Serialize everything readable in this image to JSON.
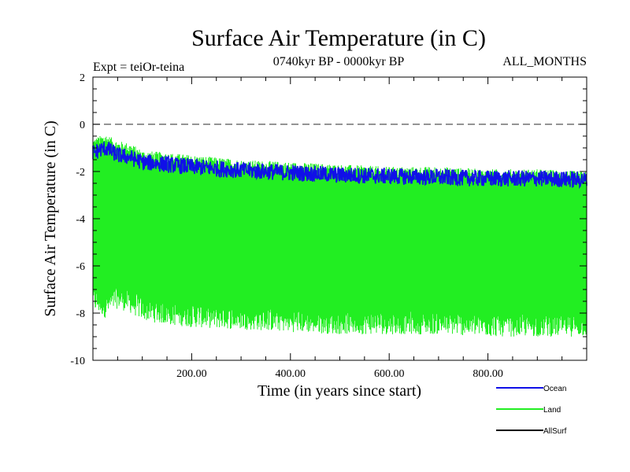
{
  "chart_data": {
    "type": "line",
    "title": "Surface Air Temperature (in C)",
    "subtitle": "0740kyr BP - 0000kyr BP",
    "left_label": "Expt = teiOr-teina",
    "right_label": "ALL_MONTHS",
    "xlabel": "Time (in years since start)",
    "ylabel": "Surface Air Temperature (in C)",
    "xlim": [
      0,
      1000
    ],
    "ylim": [
      -10,
      2
    ],
    "x_ticks": [
      200,
      400,
      600,
      800
    ],
    "x_tick_labels": [
      "200.00",
      "400.00",
      "600.00",
      "800.00"
    ],
    "y_ticks": [
      2,
      0,
      -2,
      -4,
      -6,
      -8,
      -10
    ],
    "y_tick_labels": [
      "2",
      "0",
      "-2",
      "-4",
      "-6",
      "-8",
      "-10"
    ],
    "reference_line": {
      "y": 0,
      "style": "dashed"
    },
    "series": [
      {
        "name": "Land",
        "color": "#22ee22",
        "kind": "band",
        "x": [
          0,
          25,
          50,
          75,
          100,
          150,
          200,
          300,
          400,
          500,
          600,
          700,
          800,
          900,
          1000
        ],
        "upper": [
          -0.8,
          -0.6,
          -0.9,
          -1.0,
          -1.3,
          -1.4,
          -1.5,
          -1.7,
          -1.8,
          -1.9,
          -2.0,
          -2.0,
          -2.1,
          -2.1,
          -2.2
        ],
        "lower": [
          -7.5,
          -7.8,
          -7.4,
          -7.6,
          -7.9,
          -8.1,
          -8.2,
          -8.3,
          -8.4,
          -8.5,
          -8.5,
          -8.5,
          -8.6,
          -8.6,
          -8.6
        ]
      },
      {
        "name": "Ocean",
        "color": "#1010e8",
        "kind": "line",
        "x": [
          0,
          25,
          50,
          75,
          100,
          150,
          200,
          300,
          400,
          500,
          600,
          700,
          800,
          900,
          1000
        ],
        "values": [
          -1.2,
          -1.0,
          -1.3,
          -1.4,
          -1.6,
          -1.7,
          -1.8,
          -1.95,
          -2.05,
          -2.15,
          -2.2,
          -2.25,
          -2.3,
          -2.3,
          -2.35
        ]
      },
      {
        "name": "AllSurf",
        "color": "#000000",
        "kind": "legend-only",
        "x": [],
        "values": []
      }
    ],
    "legend_position": "bottom-right"
  }
}
